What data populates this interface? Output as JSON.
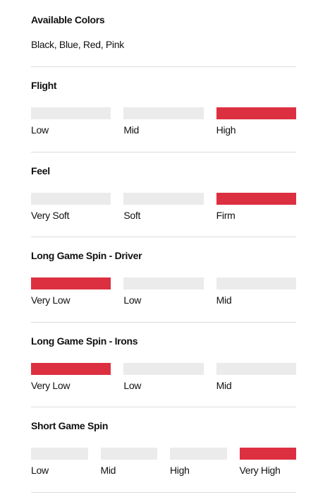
{
  "sections": [
    {
      "title": "Available Colors",
      "text": "Black, Blue, Red, Pink"
    },
    {
      "title": "Flight",
      "options": [
        {
          "label": "Low",
          "active": false
        },
        {
          "label": "Mid",
          "active": false
        },
        {
          "label": "High",
          "active": true
        }
      ]
    },
    {
      "title": "Feel",
      "options": [
        {
          "label": "Very Soft",
          "active": false
        },
        {
          "label": "Soft",
          "active": false
        },
        {
          "label": "Firm",
          "active": true
        }
      ]
    },
    {
      "title": "Long Game Spin - Driver",
      "options": [
        {
          "label": "Very Low",
          "active": true
        },
        {
          "label": "Low",
          "active": false
        },
        {
          "label": "Mid",
          "active": false
        }
      ]
    },
    {
      "title": "Long Game Spin - Irons",
      "options": [
        {
          "label": "Very Low",
          "active": true
        },
        {
          "label": "Low",
          "active": false
        },
        {
          "label": "Mid",
          "active": false
        }
      ]
    },
    {
      "title": "Short Game Spin",
      "options": [
        {
          "label": "Low",
          "active": false
        },
        {
          "label": "Mid",
          "active": false
        },
        {
          "label": "High",
          "active": false
        },
        {
          "label": "Very High",
          "active": true
        }
      ]
    }
  ]
}
